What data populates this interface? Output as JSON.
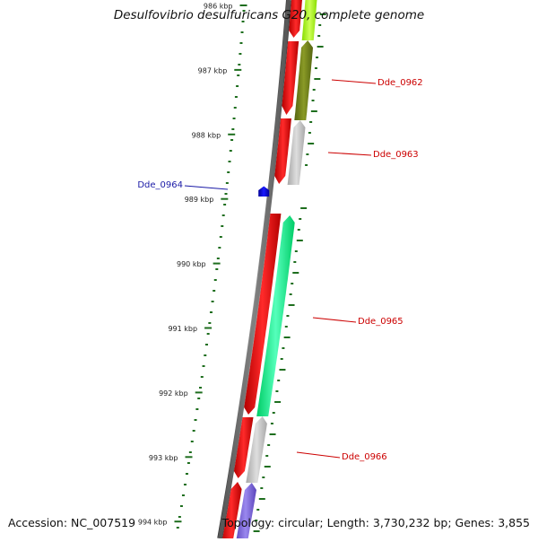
{
  "title": "Desulfovibrio desulfuricans G20, complete genome",
  "footer": {
    "accession": "Accession: NC_007519",
    "stats": "Topology: circular; Length: 3,730,232 bp; Genes: 3,855"
  },
  "ruler": {
    "major_labels": [
      {
        "label": "986 kbp"
      },
      {
        "label": "987 kbp"
      },
      {
        "label": "988 kbp"
      },
      {
        "label": "989 kbp"
      },
      {
        "label": "990 kbp"
      },
      {
        "label": "991 kbp"
      },
      {
        "label": "992 kbp"
      },
      {
        "label": "993 kbp"
      },
      {
        "label": "994 kbp"
      }
    ],
    "tick_color": "#1e6e1e"
  },
  "genes": [
    {
      "id": "Dde_0962",
      "strand": "-",
      "feature_color": "#ff1010",
      "label_color": "#cc0000"
    },
    {
      "id": "Dde_0963",
      "strand": "-",
      "feature_color": "#ff1010",
      "label_color": "#cc0000"
    },
    {
      "id": "Dde_0964",
      "strand": "+",
      "feature_color": "#0000dd",
      "label_color": "#1a1aa6"
    },
    {
      "id": "Dde_0965",
      "strand": "-",
      "feature_color": "#ff1010",
      "label_color": "#cc0000"
    },
    {
      "id": "Dde_0966",
      "strand": "-",
      "feature_color": "#ff1010",
      "label_color": "#cc0000"
    }
  ],
  "category_colors": {
    "yellow_green": "#aaff22",
    "olive": "#7a8a1c",
    "light_gray": "#c4c4c4",
    "spring_green": "#22ff99",
    "slate_blue": "#7a66dd"
  },
  "backbone_color": "#6e6e6e"
}
